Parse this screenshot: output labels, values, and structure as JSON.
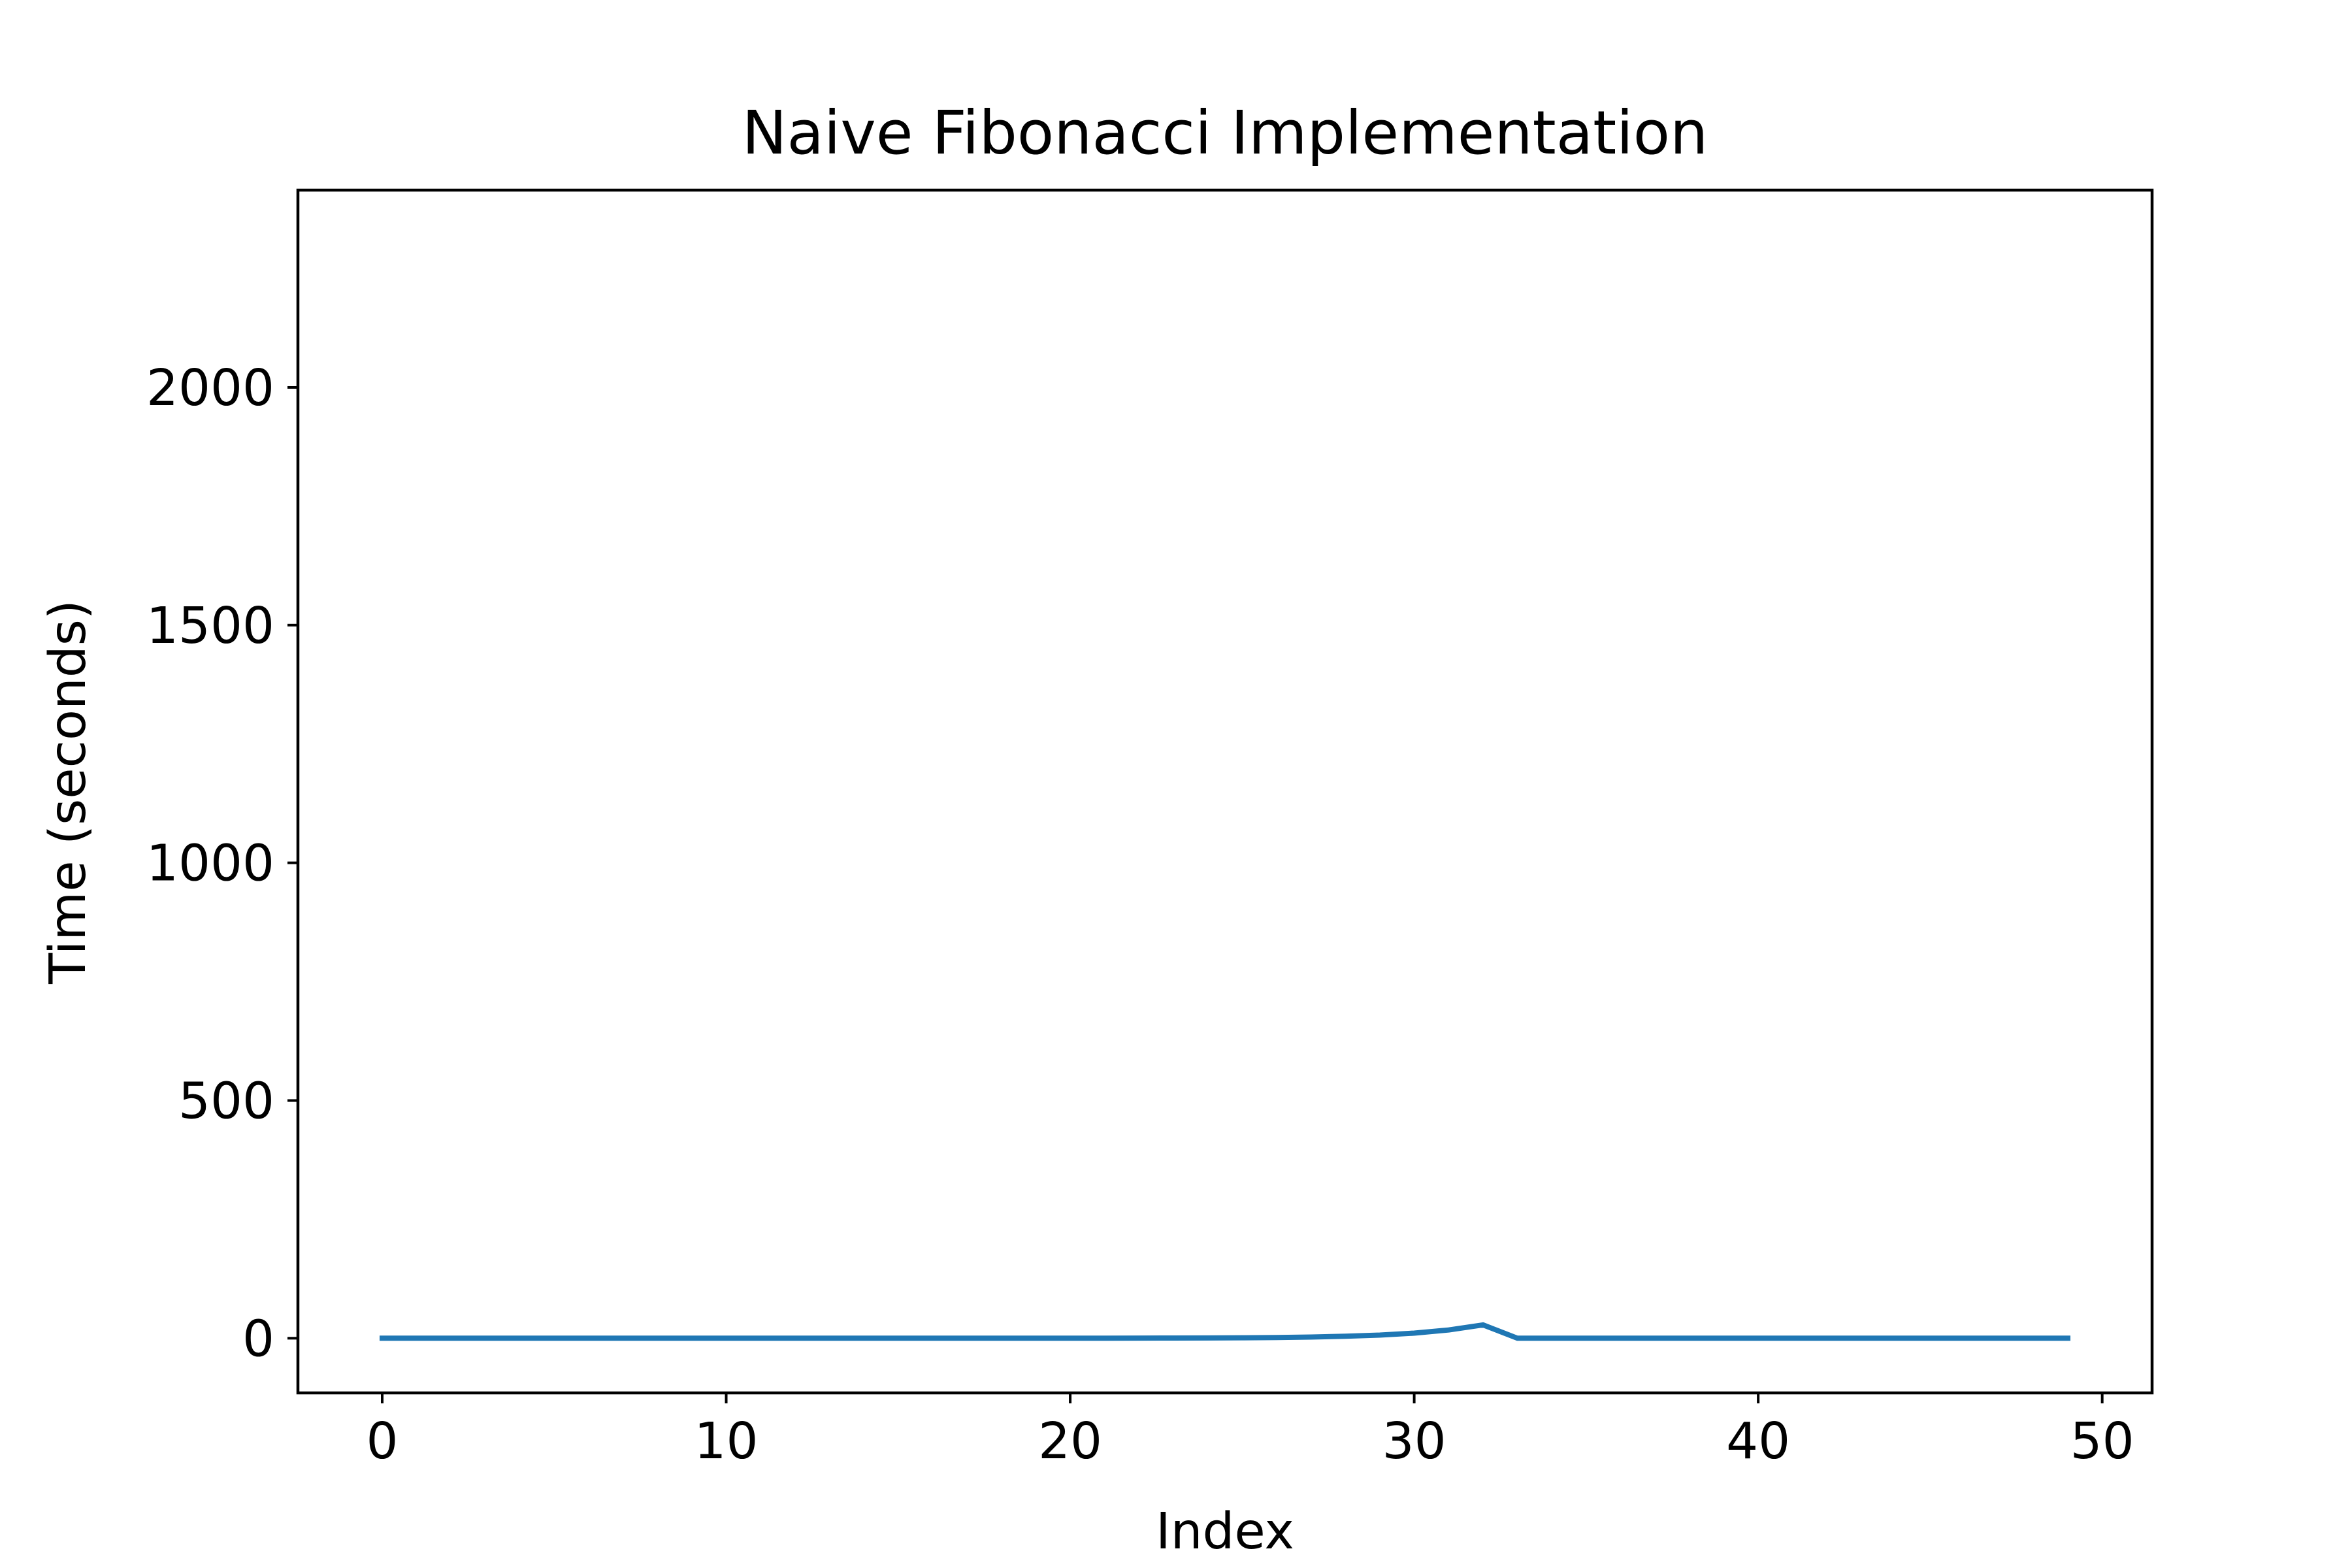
{
  "chart_data": {
    "type": "line",
    "title": "Naive Fibonacci Implementation",
    "xlabel": "Index",
    "ylabel": "Time (seconds)",
    "xlim": [
      -2.45,
      51.45
    ],
    "ylim": [
      -115,
      2415
    ],
    "xticks": [
      0,
      10,
      20,
      30,
      40,
      50
    ],
    "xtick_labels": [
      "0",
      "10",
      "20",
      "30",
      "40",
      "50"
    ],
    "yticks": [
      0,
      500,
      1000,
      1500,
      2000
    ],
    "ytick_labels": [
      "0",
      "500",
      "1000",
      "1500",
      "2000"
    ],
    "grid": false,
    "legend": "none",
    "series": [
      {
        "color": "#1f77b4",
        "x": [
          0,
          1,
          2,
          3,
          4,
          5,
          6,
          7,
          8,
          9,
          10,
          11,
          12,
          13,
          14,
          15,
          16,
          17,
          18,
          19,
          20,
          21,
          22,
          23,
          24,
          25,
          26,
          27,
          28,
          29,
          30,
          31,
          32,
          33,
          34,
          35,
          36,
          37,
          38,
          39,
          40,
          41,
          42,
          43,
          44,
          45,
          46,
          47,
          48,
          49
        ],
        "y": [
          0,
          0,
          0,
          0,
          0,
          0,
          0,
          0,
          0,
          0,
          0,
          0,
          0,
          0,
          0,
          0,
          0,
          0,
          0,
          0.1,
          0.1,
          0.2,
          0.3,
          0.4,
          0.6,
          1.0,
          1.6,
          2.5,
          4.1,
          6.6,
          10.7,
          17.3,
          28,
          0.0,
          0.0,
          0.0,
          0.0,
          0.0,
          0.0,
          0.0,
          0.0,
          0.0,
          0.0,
          0.0,
          0.0,
          0.0,
          0.0,
          0.0,
          0.0,
          0.0
        ]
      }
    ]
  }
}
